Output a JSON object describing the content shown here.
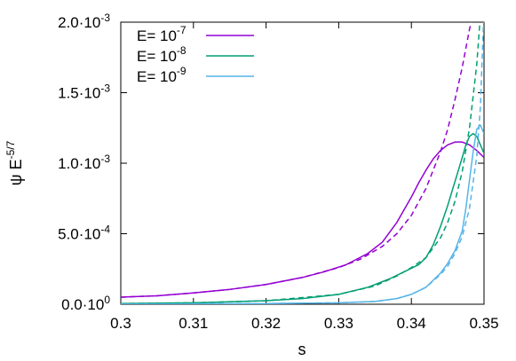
{
  "chart_data": {
    "type": "line",
    "xlabel": "s",
    "ylabel": "ψ E",
    "ylabel_exp": "-5/7",
    "xlim": [
      0.3,
      0.35
    ],
    "ylim": [
      0,
      0.002
    ],
    "x_ticks": [
      {
        "value": 0.3,
        "label": "0.3"
      },
      {
        "value": 0.31,
        "label": "0.31"
      },
      {
        "value": 0.32,
        "label": "0.32"
      },
      {
        "value": 0.33,
        "label": "0.33"
      },
      {
        "value": 0.34,
        "label": "0.34"
      },
      {
        "value": 0.35,
        "label": "0.35"
      }
    ],
    "y_ticks": [
      {
        "value": 0,
        "mantissa": "0.0·10",
        "exp": "0"
      },
      {
        "value": 0.0005,
        "mantissa": "5.0·10",
        "exp": "-4"
      },
      {
        "value": 0.001,
        "mantissa": "1.0·10",
        "exp": "-3"
      },
      {
        "value": 0.0015,
        "mantissa": "1.5·10",
        "exp": "-3"
      },
      {
        "value": 0.002,
        "mantissa": "2.0·10",
        "exp": "-3"
      }
    ],
    "legend_placement": "top-left",
    "series": [
      {
        "name": "E= 10",
        "name_exp": "-7",
        "color": "#9400d3",
        "style": "solid",
        "x": [
          0.3,
          0.305,
          0.31,
          0.315,
          0.32,
          0.325,
          0.328,
          0.331,
          0.334,
          0.336,
          0.338,
          0.34,
          0.341,
          0.342,
          0.343,
          0.344,
          0.345,
          0.346,
          0.347,
          0.348,
          0.349,
          0.35
        ],
        "y": [
          5e-05,
          6e-05,
          8e-05,
          0.000105,
          0.00014,
          0.00019,
          0.00023,
          0.00028,
          0.00036,
          0.00044,
          0.00058,
          0.00076,
          0.00086,
          0.00095,
          0.00103,
          0.00109,
          0.00113,
          0.00115,
          0.00115,
          0.00113,
          0.00109,
          0.00104
        ]
      },
      {
        "name": "",
        "color": "#9400d3",
        "style": "dashed",
        "x": [
          0.3,
          0.305,
          0.31,
          0.315,
          0.32,
          0.325,
          0.33,
          0.333,
          0.336,
          0.338,
          0.34,
          0.342,
          0.344,
          0.345,
          0.346,
          0.347,
          0.348,
          0.3485
        ],
        "y": [
          5e-05,
          6e-05,
          8e-05,
          0.000105,
          0.00014,
          0.00019,
          0.00026,
          0.00032,
          0.00041,
          0.0005,
          0.00063,
          0.00082,
          0.00108,
          0.00124,
          0.00145,
          0.00168,
          0.00195,
          0.00205
        ]
      },
      {
        "name": "E= 10",
        "name_exp": "-8",
        "color": "#009e73",
        "style": "solid",
        "x": [
          0.3,
          0.31,
          0.32,
          0.325,
          0.33,
          0.334,
          0.337,
          0.339,
          0.341,
          0.342,
          0.343,
          0.344,
          0.345,
          0.346,
          0.347,
          0.3475,
          0.348,
          0.3485,
          0.349,
          0.3495,
          0.35
        ],
        "y": [
          5e-06,
          1e-05,
          2.5e-05,
          4e-05,
          7e-05,
          0.00012,
          0.00018,
          0.00023,
          0.00028,
          0.00033,
          0.00042,
          0.00055,
          0.0007,
          0.00087,
          0.00104,
          0.00113,
          0.00119,
          0.00121,
          0.00119,
          0.00113,
          0.00107
        ]
      },
      {
        "name": "",
        "color": "#009e73",
        "style": "dashed",
        "x": [
          0.3,
          0.31,
          0.32,
          0.33,
          0.335,
          0.338,
          0.34,
          0.342,
          0.344,
          0.345,
          0.346,
          0.347,
          0.348,
          0.349,
          0.3495
        ],
        "y": [
          5e-06,
          1e-05,
          2.5e-05,
          7e-05,
          0.00013,
          0.0002,
          0.00026,
          0.00033,
          0.00047,
          0.00058,
          0.00073,
          0.00094,
          0.00125,
          0.0017,
          0.00205
        ]
      },
      {
        "name": "E= 10",
        "name_exp": "-9",
        "color": "#56b4e9",
        "style": "solid",
        "x": [
          0.3,
          0.31,
          0.32,
          0.33,
          0.335,
          0.338,
          0.34,
          0.342,
          0.344,
          0.345,
          0.346,
          0.347,
          0.3475,
          0.348,
          0.3485,
          0.349,
          0.3495,
          0.35
        ],
        "y": [
          0,
          2e-06,
          5e-06,
          1e-05,
          2e-05,
          4e-05,
          7e-05,
          0.00012,
          0.00022,
          0.00029,
          0.00038,
          0.00052,
          0.00068,
          0.00088,
          0.00108,
          0.00124,
          0.00127,
          0.00121
        ]
      },
      {
        "name": "",
        "color": "#56b4e9",
        "style": "dashed",
        "x": [
          0.3,
          0.31,
          0.32,
          0.33,
          0.335,
          0.338,
          0.34,
          0.342,
          0.344,
          0.345,
          0.346,
          0.347,
          0.348,
          0.349,
          0.3495,
          0.35
        ],
        "y": [
          0,
          2e-06,
          5e-06,
          1e-05,
          2e-05,
          4e-05,
          7e-05,
          0.00012,
          0.00021,
          0.00027,
          0.00036,
          0.00048,
          0.00068,
          0.00105,
          0.0014,
          0.0021
        ]
      }
    ]
  }
}
